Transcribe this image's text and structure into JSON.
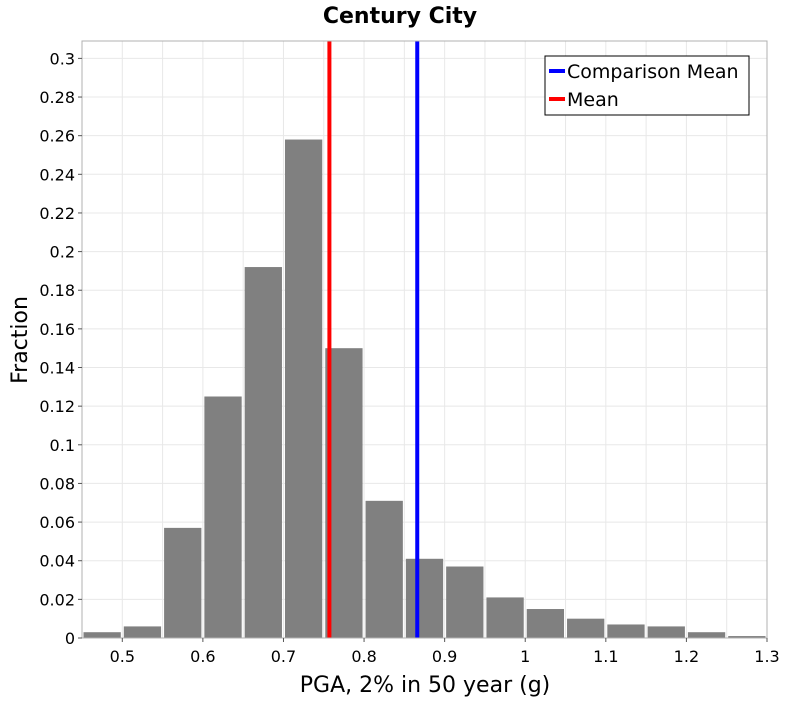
{
  "chart_data": {
    "type": "bar",
    "title": "Century City",
    "xlabel": "PGA, 2% in 50 year (g)",
    "ylabel": "Fraction",
    "xlim": [
      0.45,
      1.3
    ],
    "ylim": [
      0,
      0.309
    ],
    "grid": true,
    "legend_placement": "top-right",
    "x_ticks": [
      0.5,
      0.6,
      0.7,
      0.8,
      0.9,
      1,
      1.1,
      1.2,
      1.3
    ],
    "x_tick_labels": [
      "0.5",
      "0.6",
      "0.7",
      "0.8",
      "0.9",
      "1",
      "1.1",
      "1.2",
      "1.3"
    ],
    "y_ticks": [
      0,
      0.02,
      0.04,
      0.06,
      0.08,
      0.1,
      0.12,
      0.14,
      0.16,
      0.18,
      0.2,
      0.22,
      0.24,
      0.26,
      0.28,
      0.3
    ],
    "y_tick_labels": [
      "0",
      "0.02",
      "0.04",
      "0.06",
      "0.08",
      "0.1",
      "0.12",
      "0.14",
      "0.16",
      "0.18",
      "0.2",
      "0.22",
      "0.24",
      "0.26",
      "0.28",
      "0.3"
    ],
    "bin_width": 0.05,
    "bins": [
      {
        "center": 0.475,
        "value": 0.003
      },
      {
        "center": 0.525,
        "value": 0.006
      },
      {
        "center": 0.575,
        "value": 0.057
      },
      {
        "center": 0.625,
        "value": 0.125
      },
      {
        "center": 0.675,
        "value": 0.192
      },
      {
        "center": 0.725,
        "value": 0.258
      },
      {
        "center": 0.775,
        "value": 0.15
      },
      {
        "center": 0.825,
        "value": 0.071
      },
      {
        "center": 0.875,
        "value": 0.041
      },
      {
        "center": 0.925,
        "value": 0.037
      },
      {
        "center": 0.975,
        "value": 0.021
      },
      {
        "center": 1.025,
        "value": 0.015
      },
      {
        "center": 1.075,
        "value": 0.01
      },
      {
        "center": 1.125,
        "value": 0.007
      },
      {
        "center": 1.175,
        "value": 0.006
      },
      {
        "center": 1.225,
        "value": 0.003
      },
      {
        "center": 1.275,
        "value": 0.001
      }
    ],
    "vlines": [
      {
        "name": "Comparison Mean",
        "x": 0.866,
        "color": "#0000ff"
      },
      {
        "name": "Mean",
        "x": 0.757,
        "color": "#ff0000"
      }
    ],
    "bar_color": "#808080",
    "grid_color": "#e8e8e8"
  }
}
